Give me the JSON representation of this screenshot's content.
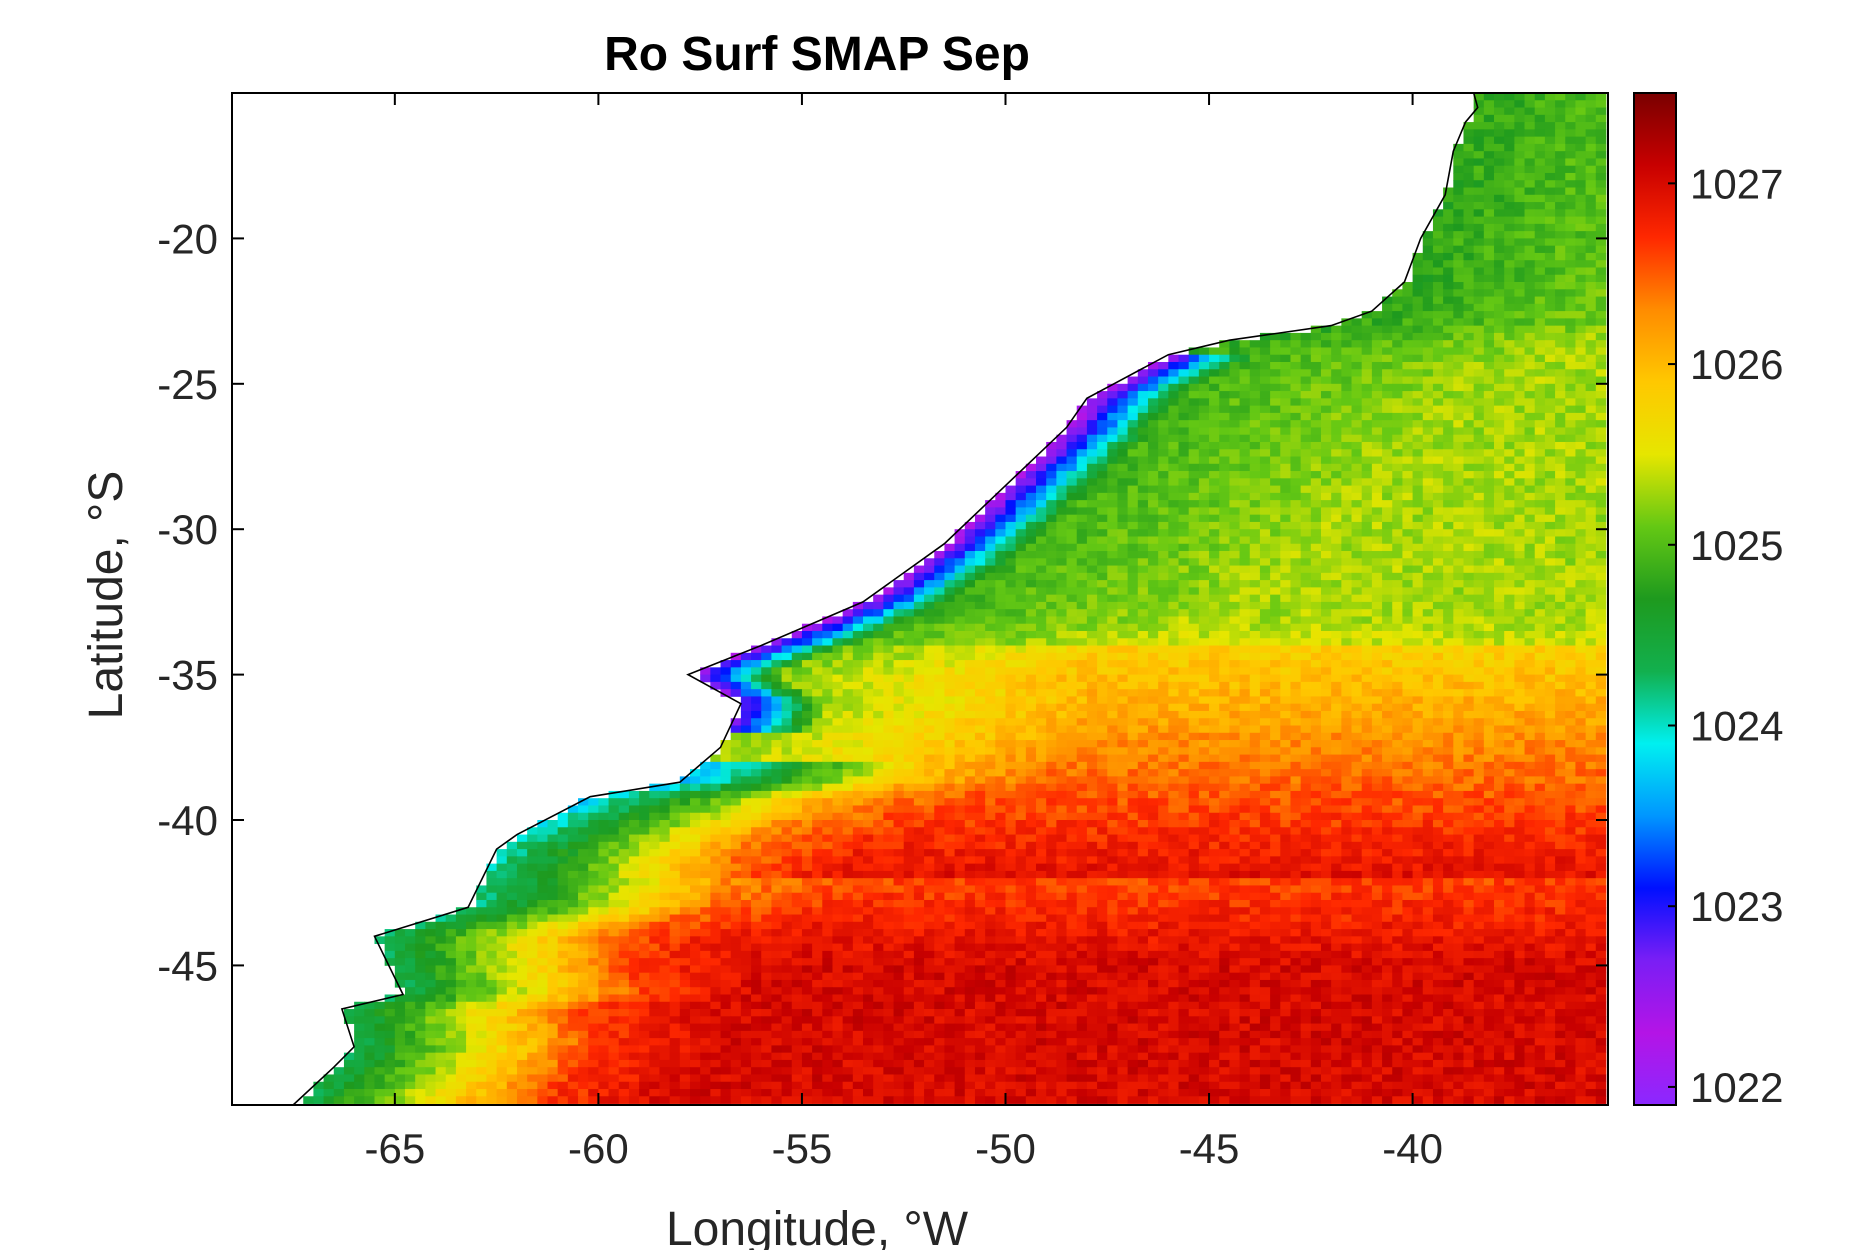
{
  "chart_data": {
    "type": "heatmap",
    "title": "Ro Surf SMAP Sep",
    "xlabel": "Longitude, °W",
    "ylabel": "Latitude, °S",
    "x_ticks": [
      -65,
      -60,
      -55,
      -50,
      -45,
      -40
    ],
    "y_ticks": [
      -20,
      -25,
      -30,
      -35,
      -40,
      -45
    ],
    "xlim": [
      -69,
      -35.2
    ],
    "ylim": [
      -49.8,
      -15
    ],
    "colorbar": {
      "ticks": [
        1022,
        1023,
        1024,
        1025,
        1026,
        1027
      ],
      "range": [
        1021.9,
        1027.5
      ],
      "colormap": [
        "#8B28FF",
        "#B414E6",
        "#7A1EF5",
        "#0010FF",
        "#0096FF",
        "#00F0F0",
        "#12B04E",
        "#1E9A1E",
        "#64C814",
        "#E6E600",
        "#FFC800",
        "#FF8C00",
        "#FF2800",
        "#C80000",
        "#7A0000"
      ]
    },
    "field_description_values": {
      "coastal_plume_min": 1022.2,
      "offshore_north": 1024.8,
      "mid_latitude": 1025.8,
      "south_open_ocean": 1027.0
    },
    "coastline": {
      "lons": [
        -67.5,
        -66.5,
        -66.0,
        -66.3,
        -64.8,
        -65.5,
        -63.2,
        -62.5,
        -62.0,
        -60.2,
        -58.0,
        -57.0,
        -56.5,
        -57.8,
        -56.0,
        -53.5,
        -51.5,
        -50.0,
        -48.5,
        -48.0,
        -46.0,
        -44.5,
        -42.0,
        -41.0,
        -40.2,
        -39.8,
        -39.2,
        -39.0,
        -38.7,
        -38.4,
        -38.5
      ],
      "lats": [
        -49.8,
        -48.5,
        -47.8,
        -46.5,
        -46.0,
        -44.0,
        -43.0,
        -41.0,
        -40.5,
        -39.2,
        -38.7,
        -37.5,
        -36.0,
        -35.0,
        -34.0,
        -32.5,
        -30.5,
        -28.5,
        -26.5,
        -25.5,
        -24.0,
        -23.5,
        -23.0,
        -22.5,
        -21.5,
        -20.0,
        -18.5,
        -17.0,
        -16.0,
        -15.5,
        -15.0
      ]
    }
  }
}
